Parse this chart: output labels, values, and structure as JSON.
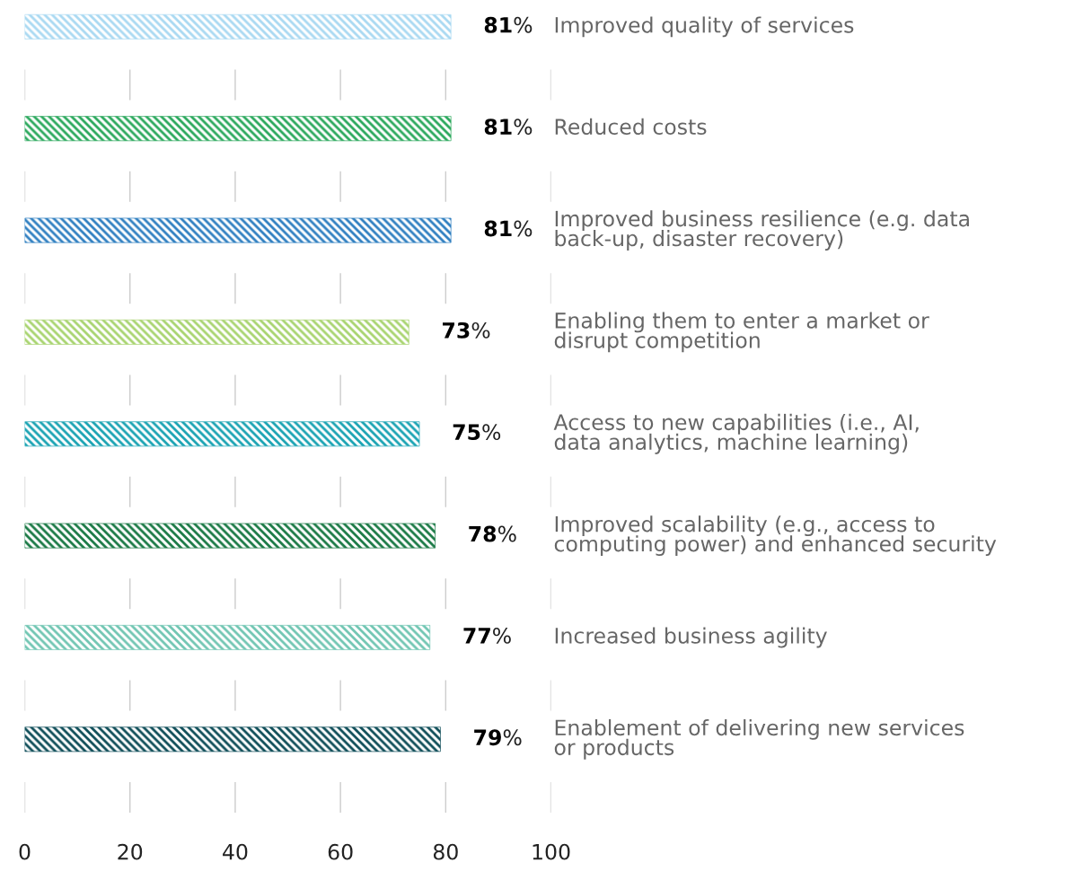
{
  "chart_data": {
    "type": "bar",
    "orientation": "horizontal",
    "categories": [
      "Improved quality of services",
      "Reduced costs",
      "Improved business resilience (e.g. data\nback-up, disaster recovery)",
      "Enabling them to enter a market or\ndisrupt competition",
      "Access to new capabilities (i.e., AI,\ndata analytics, machine learning)",
      "Improved scalability (e.g., access to\ncomputing power) and enhanced security",
      "Increased business agility",
      "Enablement of delivering new services\nor products"
    ],
    "values": [
      81,
      81,
      81,
      73,
      75,
      78,
      77,
      79
    ],
    "value_labels": [
      "81%",
      "81%",
      "81%",
      "73%",
      "75%",
      "78%",
      "77%",
      "79%"
    ],
    "colors": [
      "#a9d9f2",
      "#2aa85c",
      "#2f7fc1",
      "#a8d46f",
      "#1aa3b3",
      "#1b7a46",
      "#71c6b3",
      "#0e4d58"
    ],
    "xlim": [
      0,
      100
    ],
    "xticks": [
      0,
      20,
      40,
      60,
      80,
      100
    ],
    "grid": "x"
  }
}
